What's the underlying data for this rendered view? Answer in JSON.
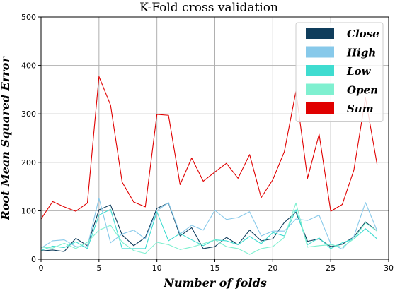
{
  "chart_data": {
    "type": "line",
    "title": "K-Fold cross validation",
    "xlabel": "Number of folds",
    "ylabel": "Root Mean Squared Error",
    "xlim": [
      0,
      30
    ],
    "ylim": [
      0,
      500
    ],
    "xticks": [
      "0",
      "5",
      "10",
      "15",
      "20",
      "25",
      "30"
    ],
    "yticks": [
      "0",
      "100",
      "200",
      "300",
      "400",
      "500"
    ],
    "grid": true,
    "legend_position": "top-right",
    "x": [
      0,
      1,
      2,
      3,
      4,
      5,
      6,
      7,
      8,
      9,
      10,
      11,
      12,
      13,
      14,
      15,
      16,
      17,
      18,
      19,
      20,
      21,
      22,
      23,
      24,
      25,
      26,
      27,
      28,
      29
    ],
    "series": [
      {
        "name": "Close",
        "color": "#0f3d5c",
        "values": [
          17,
          19,
          16,
          43,
          28,
          102,
          112,
          50,
          28,
          45,
          105,
          116,
          48,
          65,
          22,
          26,
          45,
          30,
          60,
          38,
          42,
          76,
          97,
          37,
          42,
          26,
          31,
          46,
          77,
          58
        ]
      },
      {
        "name": "High",
        "color": "#87c9ea",
        "values": [
          23,
          38,
          40,
          26,
          26,
          126,
          34,
          52,
          60,
          42,
          100,
          117,
          52,
          70,
          60,
          101,
          82,
          86,
          98,
          48,
          58,
          58,
          83,
          80,
          91,
          32,
          21,
          47,
          117,
          59
        ]
      },
      {
        "name": "Low",
        "color": "#3fdcd0",
        "values": [
          18,
          27,
          24,
          36,
          22,
          91,
          103,
          22,
          22,
          22,
          98,
          38,
          53,
          40,
          28,
          40,
          38,
          30,
          47,
          32,
          55,
          48,
          102,
          30,
          44,
          22,
          34,
          42,
          63,
          42
        ]
      },
      {
        "name": "Open",
        "color": "#7ff0d0",
        "values": [
          25,
          23,
          33,
          22,
          35,
          60,
          70,
          35,
          18,
          12,
          35,
          30,
          20,
          25,
          32,
          40,
          26,
          22,
          10,
          22,
          26,
          45,
          116,
          25,
          28,
          30,
          25,
          42,
          75,
          58
        ]
      },
      {
        "name": "Sum",
        "color": "#e00000",
        "values": [
          83,
          119,
          108,
          99,
          116,
          377,
          318,
          159,
          118,
          108,
          299,
          297,
          154,
          209,
          161,
          180,
          198,
          167,
          216,
          127,
          164,
          222,
          347,
          167,
          258,
          99,
          113,
          184,
          333,
          196
        ]
      }
    ]
  }
}
